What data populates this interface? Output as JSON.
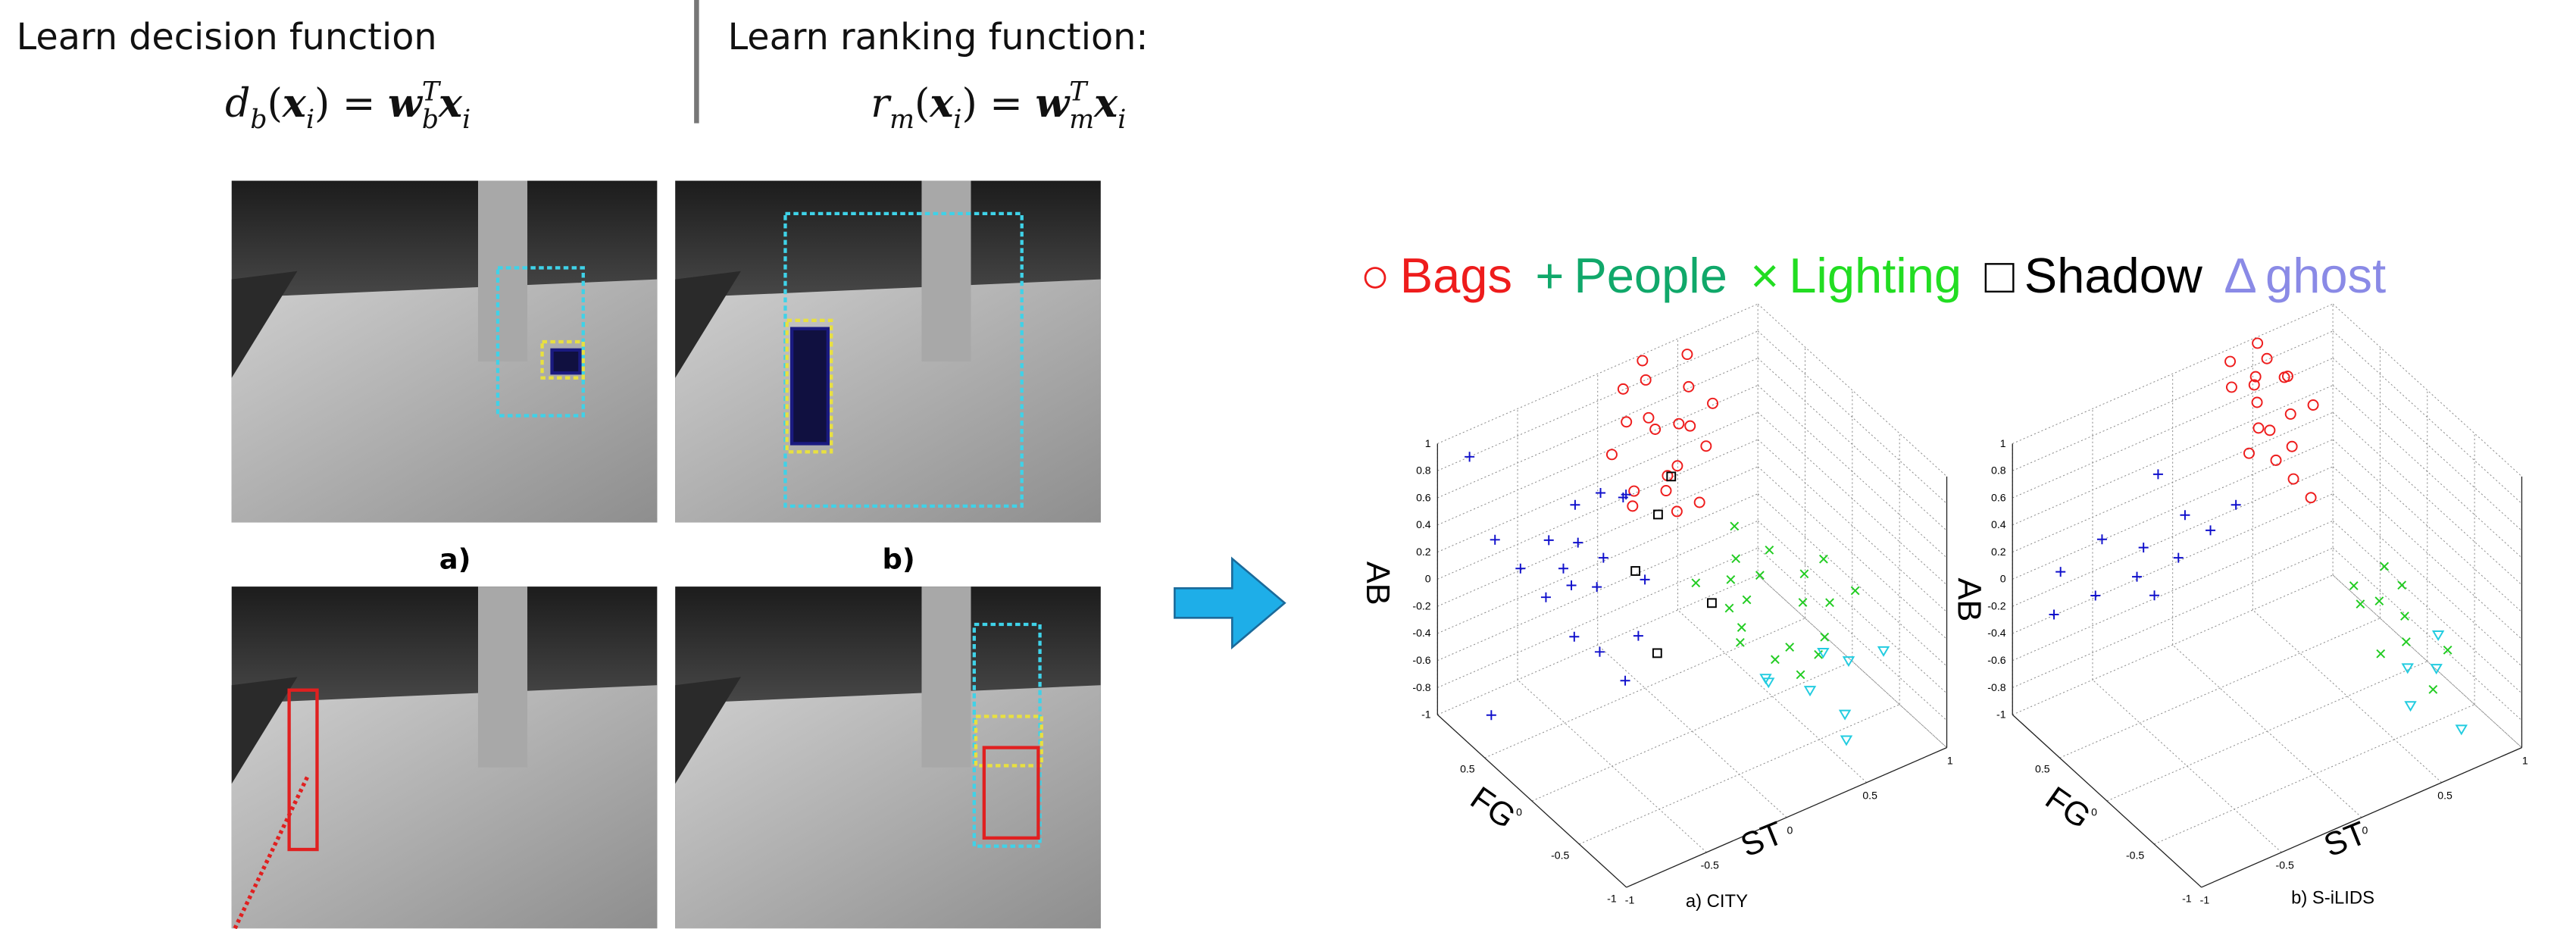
{
  "header": {
    "decision": {
      "title": "Learn decision function",
      "formula": [
        {
          "text": "d",
          "style": "italic"
        },
        {
          "text": "b",
          "style": "sub"
        },
        {
          "text": "(",
          "style": "normal"
        },
        {
          "text": "x",
          "style": "bold-italic"
        },
        {
          "text": "i",
          "style": "sub"
        },
        {
          "text": ") = ",
          "style": "normal"
        },
        {
          "text": "w",
          "style": "bold-italic"
        },
        {
          "text": "T",
          "style": "sup"
        },
        {
          "text": "b",
          "style": "sub"
        },
        {
          "text": "x",
          "style": "bold-italic"
        },
        {
          "text": "i",
          "style": "sub"
        }
      ]
    },
    "ranking": {
      "title": "Learn ranking function:",
      "formula": [
        {
          "text": "r",
          "style": "italic"
        },
        {
          "text": "m",
          "style": "sub"
        },
        {
          "text": "(",
          "style": "normal"
        },
        {
          "text": "x",
          "style": "bold-italic"
        },
        {
          "text": "i",
          "style": "sub"
        },
        {
          "text": ") = ",
          "style": "normal"
        },
        {
          "text": "w",
          "style": "bold-italic"
        },
        {
          "text": "T",
          "style": "sup"
        },
        {
          "text": "m",
          "style": "sub"
        },
        {
          "text": "x",
          "style": "bold-italic"
        },
        {
          "text": "i",
          "style": "sub"
        }
      ]
    }
  },
  "photos": {
    "labels": [
      "a)",
      "b)"
    ]
  },
  "legend": {
    "items": [
      {
        "symbol": "○",
        "name": "Bags",
        "color": "#ee1c1c"
      },
      {
        "symbol": "+",
        "name": "People",
        "color": "#10a86a"
      },
      {
        "symbol": "×",
        "name": "Lighting",
        "color": "#22dd22"
      },
      {
        "symbol": "□",
        "name": "Shadow",
        "color": "#000000"
      },
      {
        "symbol": "∆",
        "name": "ghost",
        "color": "#8a8ae6"
      }
    ]
  },
  "chart_data": [
    {
      "type": "scatter3d",
      "caption": "a) CITY",
      "xlabel": "ST",
      "ylabel": "FG",
      "zlabel": "AB",
      "xlim": [
        -1,
        1
      ],
      "ylim": [
        -1,
        1
      ],
      "zlim": [
        -1,
        1
      ],
      "xticks": [
        -1,
        -0.5,
        0,
        0.5,
        1
      ],
      "yticks": [
        -1,
        -0.5,
        0,
        0.5
      ],
      "zticks": [
        -1,
        -0.8,
        -0.6,
        -0.4,
        -0.2,
        0,
        0.2,
        0.4,
        0.6,
        0.8,
        1
      ],
      "grid": true,
      "series": [
        {
          "marker": "circle",
          "color": "#ee1c1c",
          "x": [
            0.1,
            0.2,
            0.3,
            0.4,
            0.0,
            0.5,
            0.2,
            0.35,
            0.15,
            0.45,
            0.25,
            0.3,
            0.05,
            0.4,
            0.6,
            0.2,
            0.3,
            0.1,
            0.5,
            0.25
          ],
          "y": [
            0.9,
            0.8,
            1.0,
            0.7,
            0.85,
            0.9,
            0.6,
            0.75,
            0.95,
            0.8,
            0.7,
            0.9,
            0.7,
            0.6,
            0.8,
            0.5,
            0.65,
            0.8,
            0.7,
            0.95
          ],
          "z": [
            0.9,
            0.7,
            0.8,
            0.6,
            0.5,
            0.95,
            0.4,
            0.3,
            0.6,
            0.8,
            0.2,
            0.5,
            0.3,
            0.1,
            0.6,
            0.2,
            0.7,
            0.1,
            0.4,
            1.0
          ]
        },
        {
          "marker": "plus",
          "color": "#1010cc",
          "x": [
            -0.6,
            -0.4,
            -0.2,
            -0.5,
            -0.3,
            0.0,
            -0.1,
            -0.7,
            -0.4,
            -0.2,
            -0.5,
            0.1,
            -0.3,
            -0.6,
            -0.1,
            -0.8,
            -0.3,
            0.0,
            -0.45,
            -0.9
          ],
          "y": [
            0.8,
            0.6,
            0.9,
            0.4,
            0.7,
            0.5,
            0.8,
            0.9,
            0.3,
            0.6,
            0.7,
            0.9,
            0.5,
            0.5,
            0.4,
            1.0,
            0.2,
            0.7,
            0.6,
            0.6
          ],
          "z": [
            0.0,
            -0.1,
            0.2,
            -0.3,
            0.1,
            -0.2,
            0.3,
            0.2,
            -0.4,
            0.0,
            -0.2,
            0.1,
            -0.1,
            0.4,
            -0.5,
            0.8,
            -0.6,
            0.3,
            0.05,
            -0.8
          ]
        },
        {
          "marker": "cross",
          "color": "#22cc22",
          "x": [
            0.2,
            0.4,
            0.6,
            0.8,
            0.3,
            0.5,
            0.7,
            0.9,
            0.35,
            0.55,
            0.75,
            0.25,
            0.45,
            0.65,
            0.85,
            0.4,
            0.6,
            0.3,
            0.5,
            0.7
          ],
          "y": [
            0.3,
            0.1,
            0.2,
            -0.1,
            0.0,
            0.4,
            0.0,
            -0.2,
            0.2,
            -0.1,
            0.1,
            -0.1,
            0.3,
            -0.3,
            0.05,
            -0.2,
            0.3,
            0.1,
            -0.3,
            -0.15
          ],
          "z": [
            -0.2,
            -0.3,
            -0.1,
            -0.4,
            -0.5,
            0.0,
            -0.2,
            -0.3,
            -0.4,
            -0.6,
            -0.5,
            -0.3,
            -0.15,
            -0.45,
            -0.2,
            -0.55,
            -0.35,
            -0.1,
            -0.65,
            -0.7
          ]
        },
        {
          "marker": "square",
          "color": "#000000",
          "x": [
            0.0,
            0.2,
            0.4,
            0.3,
            -0.1
          ],
          "y": [
            0.6,
            0.7,
            0.9,
            0.3,
            0.2
          ],
          "z": [
            -0.2,
            0.05,
            0.1,
            -0.4,
            -0.5
          ]
        },
        {
          "marker": "triangle",
          "color": "#22cce0",
          "x": [
            0.3,
            0.5,
            0.7,
            0.9,
            0.6,
            0.4,
            0.8,
            0.55
          ],
          "y": [
            -0.3,
            -0.4,
            -0.2,
            -0.5,
            -0.6,
            -0.1,
            -0.3,
            -0.7
          ],
          "z": [
            -0.6,
            -0.7,
            -0.65,
            -0.55,
            -0.8,
            -0.75,
            -0.7,
            -0.9
          ]
        }
      ]
    },
    {
      "type": "scatter3d",
      "caption": "b) S-iLIDS",
      "xlabel": "ST",
      "ylabel": "FG",
      "zlabel": "AB",
      "xlim": [
        -1,
        1
      ],
      "ylim": [
        -1,
        1
      ],
      "zlim": [
        -1,
        1
      ],
      "xticks": [
        -1,
        -0.5,
        0,
        0.5,
        1
      ],
      "yticks": [
        -1,
        -0.5,
        0,
        0.5
      ],
      "zticks": [
        -1,
        -0.8,
        -0.6,
        -0.4,
        -0.2,
        0,
        0.2,
        0.4,
        0.6,
        0.8,
        1
      ],
      "grid": true,
      "series": [
        {
          "marker": "circle",
          "color": "#ee1c1c",
          "x": [
            0.3,
            0.4,
            0.5,
            0.35,
            0.45,
            0.55,
            0.3,
            0.4,
            0.5,
            0.6,
            0.35,
            0.45,
            0.25,
            0.5,
            0.4,
            0.7,
            0.3,
            0.45
          ],
          "y": [
            0.9,
            0.8,
            0.85,
            0.7,
            0.9,
            0.75,
            0.6,
            0.65,
            0.6,
            0.8,
            0.5,
            0.5,
            0.8,
            0.95,
            0.4,
            0.7,
            0.7,
            0.3
          ],
          "z": [
            1.0,
            0.9,
            0.95,
            0.8,
            0.75,
            0.85,
            0.7,
            0.6,
            0.7,
            0.8,
            0.5,
            0.55,
            0.9,
            1.0,
            0.4,
            0.6,
            0.45,
            0.3
          ]
        },
        {
          "marker": "plus",
          "color": "#1010cc",
          "x": [
            -0.8,
            -0.6,
            -0.4,
            -0.2,
            -0.5,
            -0.3,
            -0.1,
            0.0,
            -0.7,
            0.1,
            -0.35,
            -0.15
          ],
          "y": [
            0.9,
            0.8,
            0.7,
            0.6,
            0.9,
            0.8,
            0.7,
            0.6,
            1.0,
            0.5,
            0.6,
            0.9
          ],
          "z": [
            -0.3,
            -0.2,
            -0.1,
            0.0,
            0.1,
            0.0,
            0.2,
            0.1,
            -0.1,
            0.3,
            -0.2,
            0.4
          ]
        },
        {
          "marker": "cross",
          "color": "#22cc22",
          "x": [
            0.6,
            0.7,
            0.8,
            0.9,
            0.75,
            0.65,
            0.85,
            0.95,
            0.7,
            0.8
          ],
          "y": [
            0.1,
            0.0,
            -0.1,
            0.1,
            -0.2,
            -0.1,
            0.2,
            -0.3,
            0.2,
            -0.4
          ],
          "z": [
            -0.3,
            -0.4,
            -0.5,
            -0.45,
            -0.6,
            -0.7,
            -0.35,
            -0.7,
            -0.55,
            -0.85
          ]
        },
        {
          "marker": "triangle",
          "color": "#22cce0",
          "x": [
            0.7,
            0.85,
            0.95,
            0.6,
            0.8
          ],
          "y": [
            -0.3,
            -0.35,
            -0.2,
            -0.5,
            -0.7
          ],
          "z": [
            -0.7,
            -0.75,
            -0.65,
            -0.8,
            -0.95
          ]
        }
      ]
    }
  ]
}
